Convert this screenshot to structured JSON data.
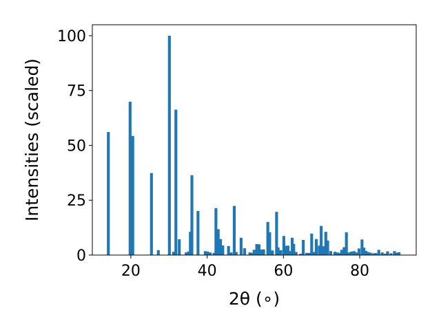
{
  "chart_data": {
    "type": "bar",
    "title": "",
    "xlabel": "2θ (∘)",
    "ylabel": "Intensities (scaled)",
    "xlim": [
      9.9,
      94.8
    ],
    "ylim": [
      0,
      105
    ],
    "xticks": [
      20,
      40,
      60,
      80
    ],
    "yticks": [
      0,
      25,
      50,
      75,
      100
    ],
    "grid": false,
    "bar_color": "#1f77b4",
    "bar_width": 0.75,
    "x": [
      14.1,
      19.8,
      20.5,
      25.4,
      27.2,
      30.1,
      31.2,
      31.8,
      32.7,
      34.5,
      35.1,
      35.6,
      36.0,
      37.6,
      39.5,
      40.1,
      40.8,
      41.8,
      42.3,
      42.9,
      43.5,
      44.1,
      45.6,
      46.3,
      47.1,
      47.6,
      48.9,
      49.8,
      51.2,
      51.8,
      52.3,
      53.0,
      53.6,
      54.2,
      54.8,
      55.9,
      56.4,
      57.1,
      58.2,
      58.6,
      59.3,
      60.1,
      60.6,
      61.2,
      61.7,
      62.3,
      62.7,
      63.3,
      64.5,
      65.2,
      66.1,
      66.8,
      67.4,
      68.1,
      68.6,
      69.4,
      69.9,
      70.5,
      71.1,
      71.6,
      72.4,
      73.5,
      74.1,
      74.7,
      75.3,
      75.9,
      76.5,
      77.1,
      77.8,
      78.5,
      79.2,
      79.8,
      80.6,
      81.1,
      81.6,
      82.2,
      82.8,
      83.6,
      84.2,
      85.0,
      85.9,
      86.7,
      87.3,
      88.2,
      89.1,
      89.7,
      90.3
    ],
    "values": [
      56.1,
      69.9,
      54.3,
      37.4,
      2.2,
      100.0,
      1.5,
      66.3,
      7.2,
      1.2,
      1.6,
      10.6,
      36.4,
      20.1,
      1.8,
      1.6,
      1.2,
      1.0,
      21.4,
      11.8,
      7.3,
      4.4,
      4.1,
      1.2,
      22.4,
      1.4,
      7.9,
      3.1,
      1.2,
      1.0,
      2.4,
      5.0,
      4.9,
      2.5,
      2.6,
      15.1,
      10.4,
      2.1,
      19.7,
      3.5,
      2.2,
      8.7,
      4.2,
      4.3,
      1.8,
      7.9,
      5.1,
      1.4,
      0.6,
      6.9,
      1.0,
      1.0,
      9.8,
      1.4,
      7.3,
      4.3,
      13.3,
      4.0,
      10.6,
      6.6,
      1.8,
      1.5,
      1.2,
      1.0,
      2.4,
      3.6,
      10.4,
      1.2,
      1.6,
      1.8,
      1.2,
      3.0,
      7.1,
      3.4,
      1.9,
      1.4,
      1.1,
      0.8,
      0.9,
      2.4,
      1.2,
      0.6,
      1.7,
      0.8,
      1.8,
      1.1,
      1.3
    ]
  }
}
